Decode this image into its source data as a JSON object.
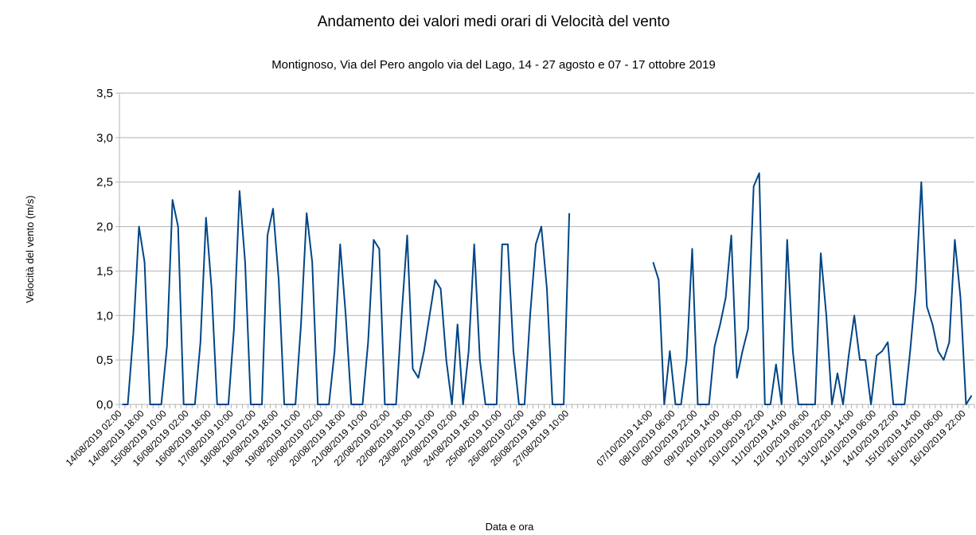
{
  "chart_data": {
    "type": "line",
    "title": "Andamento dei valori medi orari di Velocità del vento",
    "subtitle": "Montignoso, Via del Pero angolo via del Lago, 14 - 27 agosto e 07 - 17 ottobre 2019",
    "y_label": "Velocità del vento (m/s)",
    "x_label": "Data e ora",
    "color": "#004586",
    "grid": true,
    "ylim": [
      0,
      3.5
    ],
    "yticks": [
      {
        "value": 0,
        "label": "0,0"
      },
      {
        "value": 0.5,
        "label": "0,5"
      },
      {
        "value": 1,
        "label": "1,0"
      },
      {
        "value": 1.5,
        "label": "1,5"
      },
      {
        "value": 2,
        "label": "2,0"
      },
      {
        "value": 2.5,
        "label": "2,5"
      },
      {
        "value": 3,
        "label": "3,0"
      },
      {
        "value": 3.5,
        "label": "3,5"
      }
    ],
    "categories": [
      "14/08/2019 02:00",
      null,
      null,
      null,
      "14/08/2019 18:00",
      null,
      null,
      null,
      "15/08/2019 10:00",
      null,
      null,
      null,
      "16/08/2019 02:00",
      null,
      null,
      null,
      "16/08/2019 18:00",
      null,
      null,
      null,
      "17/08/2019 10:00",
      null,
      null,
      null,
      "18/08/2019 02:00",
      null,
      null,
      null,
      "18/08/2019 18:00",
      null,
      null,
      null,
      "19/08/2019 10:00",
      null,
      null,
      null,
      "20/08/2019 02:00",
      null,
      null,
      null,
      "20/08/2019 18:00",
      null,
      null,
      null,
      "21/08/2019 10:00",
      null,
      null,
      null,
      "22/08/2019 02:00",
      null,
      null,
      null,
      "22/08/2019 18:00",
      null,
      null,
      null,
      "23/08/2019 10:00",
      null,
      null,
      null,
      "24/08/2019 02:00",
      null,
      null,
      null,
      "24/08/2019 18:00",
      null,
      null,
      null,
      "25/08/2019 10:00",
      null,
      null,
      null,
      "26/08/2019 02:00",
      null,
      null,
      null,
      "26/08/2019 18:00",
      null,
      null,
      null,
      "27/08/2019 10:00",
      null,
      null,
      null,
      null,
      null,
      null,
      null,
      null,
      null,
      null,
      null,
      null,
      null,
      null,
      "07/10/2019 14:00",
      null,
      null,
      null,
      "08/10/2019 06:00",
      null,
      null,
      null,
      "08/10/2019 22:00",
      null,
      null,
      null,
      "09/10/2019 14:00",
      null,
      null,
      null,
      "10/10/2019 06:00",
      null,
      null,
      null,
      "10/10/2019 22:00",
      null,
      null,
      null,
      "11/10/2019 14:00",
      null,
      null,
      null,
      "12/10/2019 06:00",
      null,
      null,
      null,
      "12/10/2019 22:00",
      null,
      null,
      null,
      "13/10/2019 14:00",
      null,
      null,
      null,
      "14/10/2019 06:00",
      null,
      null,
      null,
      "14/10/2019 22:00",
      null,
      null,
      null,
      "15/10/2019 14:00",
      null,
      null,
      null,
      "16/10/2019 06:00",
      null,
      null,
      null,
      "16/10/2019 22:00",
      null
    ],
    "values": [
      0,
      0,
      0.8,
      2.0,
      1.6,
      0,
      0,
      0,
      0.65,
      2.3,
      2.0,
      0,
      0,
      0,
      0.7,
      2.1,
      1.3,
      0,
      0,
      0,
      0.85,
      2.4,
      1.6,
      0,
      0,
      0,
      1.9,
      2.2,
      1.4,
      0,
      0,
      0,
      0.9,
      2.15,
      1.6,
      0,
      0,
      0,
      0.6,
      1.8,
      1.0,
      0,
      0,
      0,
      0.7,
      1.85,
      1.75,
      0,
      0,
      0,
      1.0,
      1.9,
      0.4,
      0.3,
      0.6,
      1.0,
      1.4,
      1.3,
      0.5,
      0,
      0.9,
      0,
      0.6,
      1.8,
      0.5,
      0,
      0,
      0,
      1.8,
      1.8,
      0.6,
      0,
      0,
      1.0,
      1.8,
      2.0,
      1.3,
      0,
      0,
      0,
      2.15,
      null,
      null,
      null,
      null,
      null,
      null,
      null,
      null,
      null,
      null,
      null,
      null,
      null,
      null,
      1.6,
      1.4,
      0,
      0.6,
      0,
      0,
      0.5,
      1.75,
      0,
      0,
      0,
      0.65,
      0.9,
      1.2,
      1.9,
      0.3,
      0.6,
      0.85,
      2.45,
      2.6,
      0,
      0,
      0.45,
      0,
      1.85,
      0.6,
      0,
      0,
      0,
      0,
      1.7,
      1.0,
      0,
      0.35,
      0,
      0.55,
      1.0,
      0.5,
      0.5,
      0,
      0.55,
      0.6,
      0.7,
      0,
      0,
      0,
      0.6,
      1.3,
      2.5,
      1.1,
      0.9,
      0.6,
      0.5,
      0.7,
      1.85,
      1.2,
      0,
      0.1
    ]
  }
}
